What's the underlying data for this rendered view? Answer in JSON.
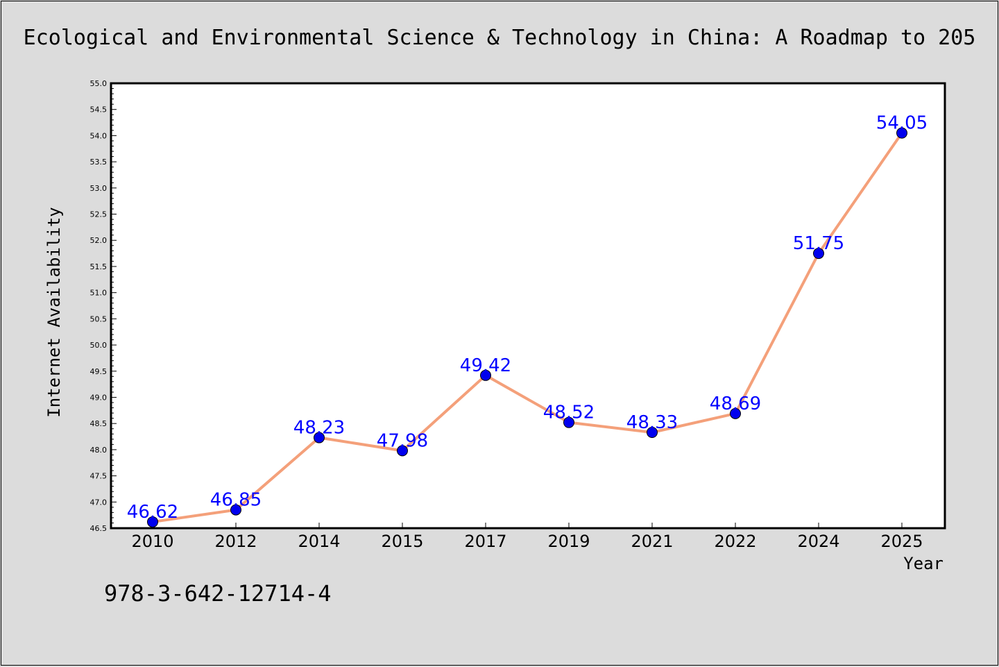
{
  "chart_data": {
    "type": "line",
    "title": "Ecological and Environmental Science & Technology in China: A Roadmap to 205",
    "xlabel": "Year",
    "ylabel": "Internet Availability",
    "categories": [
      "2010",
      "2012",
      "2014",
      "2015",
      "2017",
      "2019",
      "2021",
      "2022",
      "2024",
      "2025"
    ],
    "series": [
      {
        "values": [
          46.62,
          46.85,
          48.23,
          47.98,
          49.42,
          48.52,
          48.33,
          48.69,
          51.75,
          54.05
        ],
        "line_color": "#f4a07a",
        "marker_color": "#0000ee"
      }
    ],
    "data_labels": [
      "46.62",
      "46.85",
      "48.23",
      "47.98",
      "49.42",
      "48.52",
      "48.33",
      "48.69",
      "51.75",
      "54.05"
    ],
    "ylim": [
      46.5,
      55.0
    ],
    "yticks": [
      "46.5",
      "47.0",
      "47.5",
      "48.0",
      "48.5",
      "49.0",
      "49.5",
      "50.0",
      "50.5",
      "51.0",
      "51.5",
      "52.0",
      "52.5",
      "53.0",
      "53.5",
      "54.0",
      "54.5",
      "55.0"
    ],
    "grid": false,
    "legend": "none"
  },
  "annotation": {
    "isbn": "978-3-642-12714-4"
  },
  "colors": {
    "background": "#dcdcdc",
    "plot_background": "#ffffff",
    "label_color": "#0000ff"
  }
}
